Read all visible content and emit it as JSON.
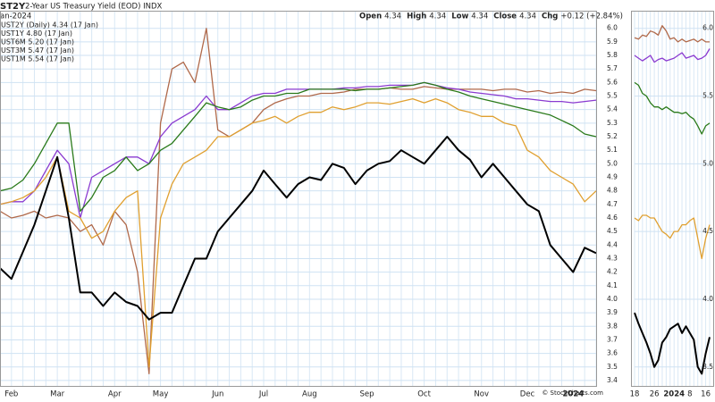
{
  "chart_data": [
    {
      "type": "line",
      "symbol": "ST2Y",
      "title": "2-Year US Treasury Yield (EOD) INDX",
      "date": "an-2024",
      "quote": [
        {
          "label": "Open",
          "value": "4.34"
        },
        {
          "label": "High",
          "value": "4.34"
        },
        {
          "label": "Low",
          "value": "4.34"
        },
        {
          "label": "Close",
          "value": "4.34"
        },
        {
          "label": "Chg",
          "value": "+0.12 (+2.84%)"
        }
      ],
      "credit": "© StockCharts.com",
      "grid": true,
      "categories": [
        null,
        "Feb",
        null,
        null,
        null,
        "Mar",
        null,
        null,
        null,
        null,
        "Apr",
        null,
        null,
        null,
        "May",
        null,
        null,
        null,
        null,
        "Jun",
        null,
        null,
        null,
        "Jul",
        null,
        null,
        null,
        "Aug",
        null,
        null,
        null,
        null,
        "Sep",
        null,
        null,
        null,
        null,
        "Oct",
        null,
        null,
        null,
        null,
        "Nov",
        null,
        null,
        null,
        "Dec",
        null,
        null,
        null,
        "2024",
        null,
        null
      ],
      "ylim": [
        3.36,
        6.13
      ],
      "yticks": [
        3.4,
        3.5,
        3.6,
        3.7,
        3.8,
        3.9,
        {
          "value": 4,
          "label": "4.0"
        },
        4.1,
        4.2,
        4.3,
        4.4,
        4.5,
        4.6,
        4.7,
        4.8,
        4.9,
        {
          "value": 5,
          "label": "5.0"
        },
        5.1,
        5.2,
        5.3,
        5.4,
        5.5,
        5.6,
        5.7,
        5.8,
        5.9,
        {
          "value": 6,
          "label": "6.0"
        }
      ],
      "series": [
        {
          "name": "UST1M 5.54 (17 Jan)",
          "color": "#b0694a",
          "values": [
            4.65,
            4.6,
            4.62,
            4.65,
            4.6,
            4.62,
            4.6,
            4.5,
            4.55,
            4.4,
            4.65,
            4.55,
            4.2,
            3.45,
            5.3,
            5.7,
            5.75,
            5.6,
            6.0,
            5.25,
            5.2,
            5.25,
            5.3,
            5.4,
            5.45,
            5.48,
            5.5,
            5.5,
            5.52,
            5.52,
            5.53,
            5.55,
            5.55,
            5.55,
            5.56,
            5.55,
            5.55,
            5.57,
            5.56,
            5.55,
            5.55,
            5.55,
            5.55,
            5.54,
            5.55,
            5.55,
            5.53,
            5.54,
            5.52,
            5.53,
            5.52,
            5.55,
            5.54
          ]
        },
        {
          "name": "UST3M 5.47 (17 Jan)",
          "color": "#8a3ad0",
          "values": [
            4.7,
            4.72,
            4.72,
            4.8,
            4.95,
            5.1,
            5.0,
            4.6,
            4.9,
            4.95,
            5.0,
            5.05,
            5.05,
            5.0,
            5.2,
            5.3,
            5.35,
            5.4,
            5.5,
            5.4,
            5.4,
            5.45,
            5.5,
            5.52,
            5.52,
            5.55,
            5.55,
            5.55,
            5.55,
            5.55,
            5.56,
            5.56,
            5.57,
            5.57,
            5.58,
            5.58,
            5.58,
            5.6,
            5.58,
            5.56,
            5.55,
            5.53,
            5.52,
            5.51,
            5.5,
            5.48,
            5.48,
            5.47,
            5.46,
            5.46,
            5.45,
            5.46,
            5.47
          ]
        },
        {
          "name": "UST6M 5.20 (17 Jan)",
          "color": "#2a7a1a",
          "values": [
            4.8,
            4.82,
            4.88,
            5.0,
            5.15,
            5.3,
            5.3,
            4.65,
            4.75,
            4.9,
            4.95,
            5.05,
            4.95,
            5.0,
            5.1,
            5.15,
            5.25,
            5.35,
            5.45,
            5.42,
            5.4,
            5.42,
            5.47,
            5.5,
            5.5,
            5.52,
            5.52,
            5.55,
            5.55,
            5.55,
            5.55,
            5.54,
            5.55,
            5.55,
            5.56,
            5.57,
            5.58,
            5.6,
            5.58,
            5.55,
            5.53,
            5.5,
            5.48,
            5.46,
            5.44,
            5.42,
            5.4,
            5.38,
            5.36,
            5.32,
            5.28,
            5.22,
            5.2
          ]
        },
        {
          "name": "UST1Y 4.80 (17 Jan)",
          "color": "#e0a030",
          "values": [
            4.7,
            4.72,
            4.75,
            4.8,
            4.9,
            5.05,
            4.65,
            4.6,
            4.45,
            4.5,
            4.65,
            4.75,
            4.8,
            3.5,
            4.6,
            4.85,
            5.0,
            5.05,
            5.1,
            5.2,
            5.2,
            5.25,
            5.3,
            5.32,
            5.35,
            5.3,
            5.35,
            5.38,
            5.38,
            5.42,
            5.4,
            5.42,
            5.45,
            5.45,
            5.44,
            5.46,
            5.48,
            5.45,
            5.48,
            5.45,
            5.4,
            5.38,
            5.35,
            5.35,
            5.3,
            5.28,
            5.1,
            5.05,
            4.95,
            4.9,
            4.85,
            4.72,
            4.8
          ]
        },
        {
          "name": "UST2Y (Daily) 4.34 (17 Jan)",
          "color": "#000000",
          "values": [
            4.23,
            4.15,
            4.35,
            4.55,
            4.8,
            5.05,
            4.6,
            4.05,
            4.05,
            3.95,
            4.05,
            3.98,
            3.95,
            3.85,
            3.9,
            3.9,
            4.1,
            4.3,
            4.3,
            4.5,
            4.6,
            4.7,
            4.8,
            4.95,
            4.85,
            4.75,
            4.85,
            4.9,
            4.88,
            5.0,
            4.97,
            4.85,
            4.95,
            5.0,
            5.02,
            5.1,
            5.05,
            5.0,
            5.1,
            5.2,
            5.1,
            5.03,
            4.9,
            5.0,
            4.9,
            4.8,
            4.7,
            4.65,
            4.4,
            4.3,
            4.2,
            4.38,
            4.34
          ]
        }
      ]
    },
    {
      "type": "line",
      "grid": true,
      "categories": [
        "18",
        null,
        null,
        null,
        null,
        "26",
        null,
        null,
        null,
        null,
        "2024",
        null,
        null,
        null,
        "8",
        null,
        null,
        null,
        "16",
        null
      ],
      "ylim": [
        3.36,
        6.13
      ],
      "yticks": [
        3.5,
        {
          "value": 4,
          "label": "4.0"
        },
        4.5,
        {
          "value": 5,
          "label": "5.0"
        },
        5.5,
        {
          "value": 6,
          "label": "6.0"
        }
      ],
      "series": [
        {
          "name": "UST1M",
          "color": "#b0694a",
          "values": [
            5.93,
            5.92,
            5.95,
            5.94,
            5.98,
            5.97,
            5.95,
            6.02,
            5.98,
            5.92,
            5.93,
            5.9,
            5.92,
            5.9,
            5.91,
            5.92,
            5.9,
            5.92,
            5.9,
            5.9
          ]
        },
        {
          "name": "UST3M",
          "color": "#8a3ad0",
          "values": [
            5.8,
            5.78,
            5.76,
            5.78,
            5.8,
            5.75,
            5.77,
            5.78,
            5.76,
            5.77,
            5.78,
            5.8,
            5.82,
            5.78,
            5.79,
            5.8,
            5.77,
            5.78,
            5.8,
            5.85
          ]
        },
        {
          "name": "UST6M",
          "color": "#2a7a1a",
          "values": [
            5.6,
            5.58,
            5.52,
            5.5,
            5.45,
            5.42,
            5.42,
            5.4,
            5.42,
            5.4,
            5.38,
            5.38,
            5.37,
            5.38,
            5.35,
            5.33,
            5.28,
            5.22,
            5.28,
            5.3
          ]
        },
        {
          "name": "UST1Y",
          "color": "#e0a030",
          "values": [
            4.6,
            4.58,
            4.62,
            4.62,
            4.6,
            4.6,
            4.55,
            4.5,
            4.48,
            4.45,
            4.5,
            4.5,
            4.55,
            4.55,
            4.58,
            4.6,
            4.45,
            4.3,
            4.45,
            4.55
          ]
        },
        {
          "name": "UST2Y",
          "color": "#000000",
          "values": [
            3.9,
            3.82,
            3.75,
            3.68,
            3.6,
            3.5,
            3.55,
            3.68,
            3.72,
            3.78,
            3.8,
            3.82,
            3.75,
            3.8,
            3.75,
            3.7,
            3.5,
            3.45,
            3.6,
            3.72
          ]
        }
      ]
    }
  ]
}
